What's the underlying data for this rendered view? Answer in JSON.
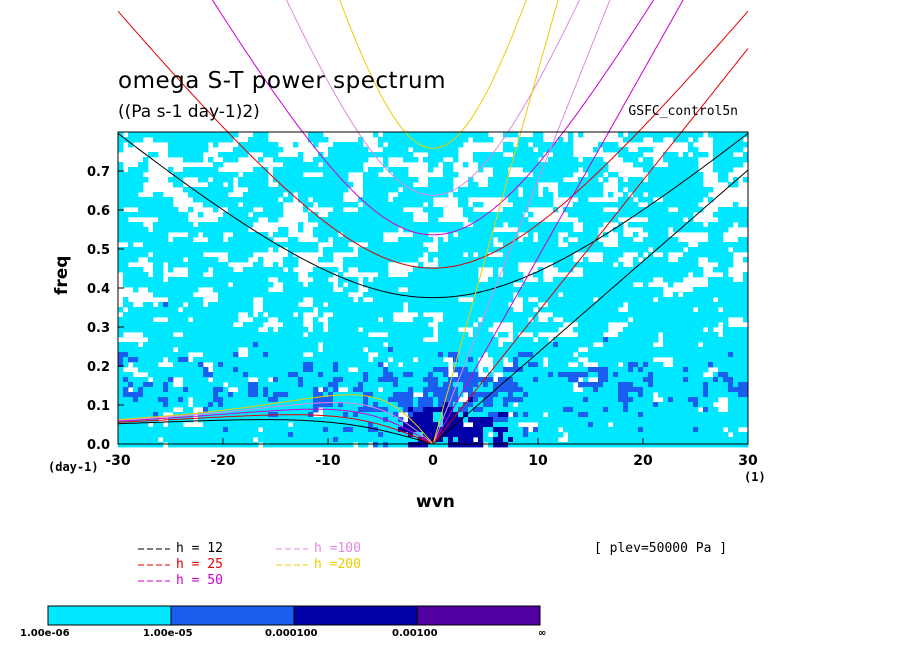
{
  "header": {
    "title": "omega S-T power spectrum",
    "subtitle": "((Pa s-1 day-1)2)",
    "run_name": "GSFC_control5n"
  },
  "annotation": {
    "plev": "[ plev=50000 Pa ]"
  },
  "axes": {
    "y_unit": "(day-1)",
    "x_unit": "(1)"
  },
  "legend": {
    "items": [
      {
        "label": "h = 12",
        "color": "#000000"
      },
      {
        "label": "h = 25",
        "color": "#dd0000"
      },
      {
        "label": "h = 50",
        "color": "#cc00cc"
      },
      {
        "label": "h =100",
        "color": "#e088e0"
      },
      {
        "label": "h =200",
        "color": "#eecc00"
      }
    ]
  },
  "colorbar": {
    "labels": [
      "1.00e-06",
      "1.00e-05",
      "0.000100",
      "0.00100",
      "∞"
    ],
    "colors": [
      "#00e8ff",
      "#1a5ef0",
      "#0000a8",
      "#5000a0"
    ]
  },
  "chart_data": {
    "type": "heatmap",
    "title": "omega S-T power spectrum",
    "subtitle": "((Pa s-1 day-1)2)",
    "xlabel": "wvn",
    "ylabel": "freq",
    "xlim": [
      -30,
      30
    ],
    "ylim": [
      0,
      0.8
    ],
    "xticks": [
      -30,
      -20,
      -10,
      0,
      10,
      20,
      30
    ],
    "xtick_labels": [
      "-30",
      "-20",
      "-10",
      "0",
      "10",
      "20",
      "30"
    ],
    "yticks": [
      0,
      0.1,
      0.2,
      0.3,
      0.4,
      0.5,
      0.6,
      0.7
    ],
    "ytick_labels": [
      "0.0",
      "0.1",
      "0.2",
      "0.3",
      "0.4",
      "0.5",
      "0.6",
      "0.7"
    ],
    "contour_levels": [
      1e-06,
      1e-05,
      0.0001,
      0.001
    ],
    "level_colors": [
      "#00e8ff",
      "#1a5ef0",
      "#0000a8",
      "#5000a0"
    ],
    "dispersion_curves": [
      {
        "name": "h = 12",
        "equivalent_depth_m": 12,
        "color": "#000000"
      },
      {
        "name": "h = 25",
        "equivalent_depth_m": 25,
        "color": "#dd0000"
      },
      {
        "name": "h = 50",
        "equivalent_depth_m": 50,
        "color": "#cc00cc"
      },
      {
        "name": "h =100",
        "equivalent_depth_m": 100,
        "color": "#e088e0"
      },
      {
        "name": "h =200",
        "equivalent_depth_m": 200,
        "color": "#eecc00"
      }
    ]
  }
}
